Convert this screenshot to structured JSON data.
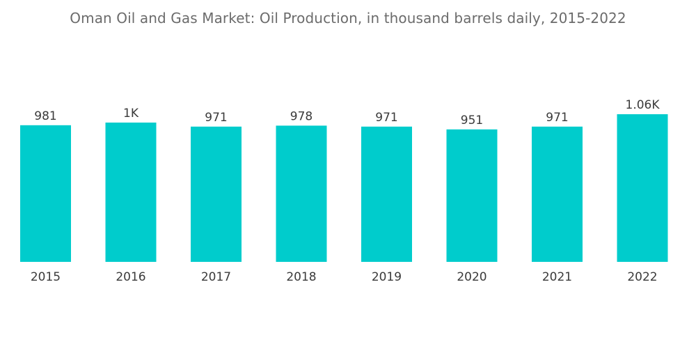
{
  "chart_data": {
    "type": "bar",
    "title": "Oman Oil and Gas Market: Oil Production, in thousand barrels daily, 2015-2022",
    "categories": [
      "2015",
      "2016",
      "2017",
      "2018",
      "2019",
      "2020",
      "2021",
      "2022"
    ],
    "values": [
      981,
      1000,
      971,
      978,
      971,
      951,
      971,
      1060
    ],
    "data_labels": [
      "981",
      "1K",
      "971",
      "978",
      "971",
      "951",
      "971",
      "1.06K"
    ],
    "xlabel": "",
    "ylabel": "",
    "bar_color": "#00cccc",
    "grid": false,
    "legend": "none"
  }
}
